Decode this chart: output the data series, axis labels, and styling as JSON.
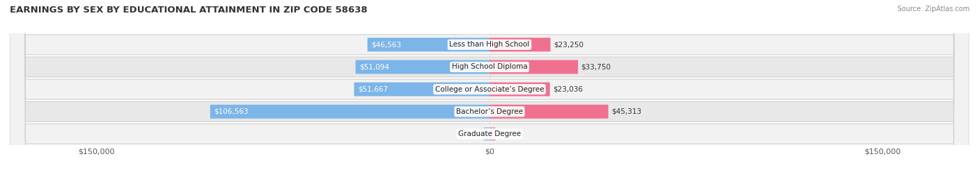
{
  "title": "EARNINGS BY SEX BY EDUCATIONAL ATTAINMENT IN ZIP CODE 58638",
  "source": "Source: ZipAtlas.com",
  "categories": [
    "Less than High School",
    "High School Diploma",
    "College or Associate’s Degree",
    "Bachelor’s Degree",
    "Graduate Degree"
  ],
  "male_values": [
    46563,
    51094,
    51667,
    106563,
    0
  ],
  "female_values": [
    23250,
    33750,
    23036,
    45313,
    0
  ],
  "male_color": "#7cb5e8",
  "female_color": "#f07090",
  "row_bg_light": "#f2f2f2",
  "row_bg_dark": "#e8e8e8",
  "row_outline": "#d0d0d0",
  "x_max": 150000,
  "x_tick_labels_left": "$150,000",
  "x_tick_labels_mid": "$0",
  "x_tick_labels_right": "$150,000",
  "background_color": "#ffffff",
  "title_fontsize": 9.5,
  "tick_fontsize": 8,
  "value_fontsize": 7.5,
  "cat_fontsize": 7.5,
  "legend_fontsize": 8
}
